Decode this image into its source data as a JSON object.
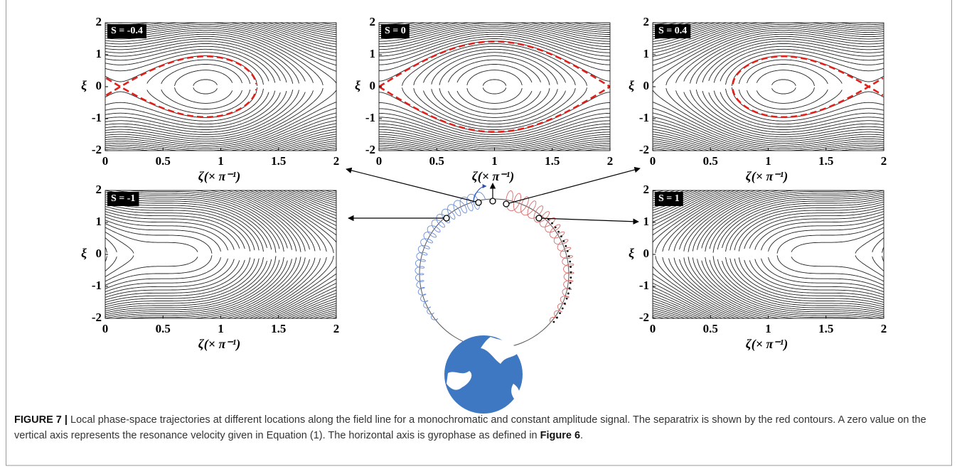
{
  "figure": {
    "panels": [
      {
        "label": "S = -0.4",
        "s": -0.4
      },
      {
        "label": "S = 0",
        "s": 0
      },
      {
        "label": "S = 0.4",
        "s": 0.4
      },
      {
        "label": "S = -1",
        "s": -1
      },
      {
        "label": "S = 1",
        "s": 1
      }
    ],
    "xticks": [
      0,
      0.5,
      1,
      1.5,
      2
    ],
    "yticks": [
      -2,
      -1,
      0,
      1,
      2
    ],
    "xlabel": "ζ(× π⁻¹)",
    "ylabel": "ξ"
  },
  "caption": {
    "label": "FIGURE 7 |",
    "text": "Local phase-space trajectories at different locations along the field line for a monochromatic and constant amplitude signal. The separatrix is shown by the red contours. A zero value on the vertical axis represents the resonance velocity given in Equation (1). The horizontal axis is gyrophase as defined in",
    "ref": "Figure 6",
    "end": "."
  }
}
